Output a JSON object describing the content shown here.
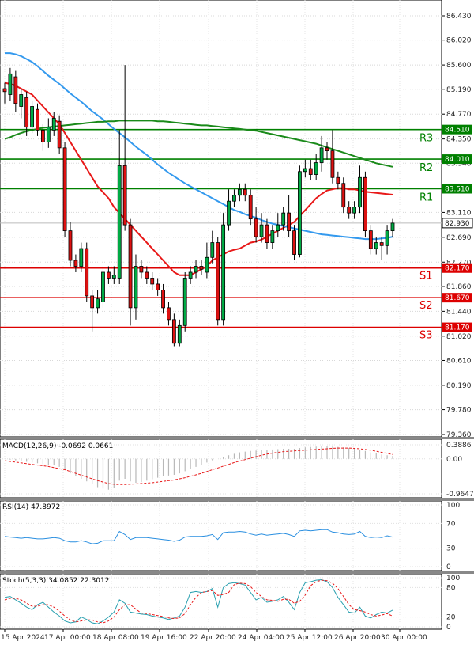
{
  "chart_data": {
    "type": "candlestick",
    "price_axis": {
      "ylim": [
        79.36,
        86.43
      ],
      "ticks": [
        "86.430",
        "86.020",
        "85.600",
        "85.190",
        "84.770",
        "84.350",
        "83.940",
        "83.110",
        "82.690",
        "82.270",
        "81.860",
        "81.440",
        "81.020",
        "80.610",
        "80.190",
        "79.780",
        "79.360"
      ]
    },
    "current_price": {
      "value": 82.93,
      "label": "82.930"
    },
    "levels": [
      {
        "name": "R3",
        "value": 84.51,
        "label": "84.510",
        "color": "#008000"
      },
      {
        "name": "R2",
        "value": 84.01,
        "label": "84.010",
        "color": "#008000"
      },
      {
        "name": "R1",
        "value": 83.51,
        "label": "83.510",
        "color": "#008000"
      },
      {
        "name": "S1",
        "value": 82.17,
        "label": "82.170",
        "color": "#dd0000"
      },
      {
        "name": "S2",
        "value": 81.67,
        "label": "81.670",
        "color": "#dd0000"
      },
      {
        "name": "S3",
        "value": 81.17,
        "label": "81.170",
        "color": "#dd0000"
      }
    ],
    "time_labels": [
      "15 Apr 2024",
      "17 Apr 00:00",
      "18 Apr 08:00",
      "19 Apr 16:00",
      "22 Apr 20:00",
      "24 Apr 04:00",
      "25 Apr 12:00",
      "26 Apr 20:00",
      "30 Apr 00:00"
    ],
    "candles": [
      [
        85.2,
        85.15,
        85.3,
        84.95
      ],
      [
        85.1,
        85.45,
        85.55,
        85.0
      ],
      [
        85.4,
        84.95,
        85.5,
        84.8
      ],
      [
        84.9,
        85.1,
        85.2,
        84.7
      ],
      [
        85.05,
        84.55,
        85.15,
        84.4
      ],
      [
        84.55,
        84.9,
        85.0,
        84.45
      ],
      [
        84.85,
        84.5,
        84.95,
        84.4
      ],
      [
        84.5,
        84.3,
        84.6,
        84.15
      ],
      [
        84.3,
        84.55,
        84.7,
        84.2
      ],
      [
        84.5,
        84.7,
        84.8,
        84.4
      ],
      [
        84.65,
        84.2,
        84.75,
        84.1
      ],
      [
        84.2,
        82.8,
        84.3,
        82.7
      ],
      [
        82.8,
        82.3,
        82.95,
        82.2
      ],
      [
        82.3,
        82.2,
        82.4,
        82.1
      ],
      [
        82.2,
        82.5,
        82.6,
        82.1
      ],
      [
        82.5,
        81.7,
        82.6,
        81.6
      ],
      [
        81.7,
        81.5,
        81.8,
        81.1
      ],
      [
        81.5,
        81.65,
        81.8,
        81.4
      ],
      [
        81.6,
        82.1,
        82.2,
        81.5
      ],
      [
        82.1,
        82.0,
        82.2,
        81.9
      ],
      [
        82.0,
        82.05,
        82.2,
        81.9
      ],
      [
        82.0,
        83.9,
        84.5,
        81.9
      ],
      [
        83.9,
        82.9,
        85.6,
        82.8
      ],
      [
        82.9,
        81.5,
        83.0,
        81.2
      ],
      [
        81.5,
        82.2,
        82.4,
        81.3
      ],
      [
        82.2,
        82.1,
        82.3,
        82.0
      ],
      [
        82.1,
        82.0,
        82.2,
        81.9
      ],
      [
        82.0,
        81.9,
        82.1,
        81.8
      ],
      [
        81.9,
        81.8,
        82.0,
        81.7
      ],
      [
        81.8,
        81.5,
        81.9,
        81.4
      ],
      [
        81.5,
        81.3,
        81.6,
        81.2
      ],
      [
        81.3,
        80.9,
        81.4,
        80.85
      ],
      [
        80.9,
        81.2,
        81.3,
        80.85
      ],
      [
        81.2,
        82.0,
        82.1,
        81.1
      ],
      [
        82.0,
        82.1,
        82.2,
        81.9
      ],
      [
        82.1,
        82.2,
        82.3,
        82.0
      ],
      [
        82.2,
        82.15,
        82.3,
        82.05
      ],
      [
        82.1,
        82.35,
        82.6,
        82.0
      ],
      [
        82.35,
        82.6,
        82.8,
        82.25
      ],
      [
        82.6,
        81.3,
        82.7,
        81.2
      ],
      [
        81.3,
        82.9,
        83.1,
        81.2
      ],
      [
        82.9,
        83.3,
        83.5,
        82.8
      ],
      [
        83.3,
        83.4,
        83.5,
        83.2
      ],
      [
        83.4,
        83.5,
        83.6,
        83.3
      ],
      [
        83.5,
        83.4,
        83.6,
        83.3
      ],
      [
        83.4,
        83.0,
        83.5,
        82.9
      ],
      [
        83.0,
        82.7,
        83.2,
        82.6
      ],
      [
        82.7,
        82.9,
        83.1,
        82.6
      ],
      [
        82.9,
        82.6,
        83.0,
        82.5
      ],
      [
        82.6,
        82.8,
        82.9,
        82.5
      ],
      [
        82.8,
        82.9,
        83.1,
        82.7
      ],
      [
        82.9,
        83.1,
        83.2,
        82.8
      ],
      [
        83.1,
        82.8,
        83.4,
        82.7
      ],
      [
        82.8,
        82.4,
        82.9,
        82.3
      ],
      [
        82.4,
        83.8,
        83.9,
        82.35
      ],
      [
        83.8,
        83.85,
        84.0,
        83.7
      ],
      [
        83.85,
        83.75,
        84.0,
        83.65
      ],
      [
        83.75,
        83.95,
        84.1,
        83.65
      ],
      [
        83.95,
        84.2,
        84.4,
        83.8
      ],
      [
        84.2,
        84.15,
        84.3,
        84.0
      ],
      [
        84.15,
        83.7,
        84.5,
        83.6
      ],
      [
        83.7,
        83.6,
        83.8,
        83.5
      ],
      [
        83.6,
        83.2,
        83.7,
        83.1
      ],
      [
        83.2,
        83.1,
        83.3,
        83.0
      ],
      [
        83.1,
        83.2,
        83.3,
        83.0
      ],
      [
        83.2,
        83.7,
        83.9,
        83.1
      ],
      [
        83.7,
        82.8,
        83.8,
        82.7
      ],
      [
        82.8,
        82.5,
        82.9,
        82.4
      ],
      [
        82.5,
        82.6,
        82.7,
        82.4
      ],
      [
        82.6,
        82.55,
        82.7,
        82.3
      ],
      [
        82.55,
        82.8,
        82.9,
        82.4
      ],
      [
        82.8,
        82.93,
        83.0,
        82.7
      ]
    ],
    "series": [
      {
        "name": "MA-short",
        "color": "#e81818",
        "values": [
          85.3,
          85.28,
          85.25,
          85.2,
          85.15,
          85.1,
          85.0,
          84.9,
          84.8,
          84.7,
          84.6,
          84.45,
          84.3,
          84.15,
          84.0,
          83.85,
          83.7,
          83.55,
          83.45,
          83.35,
          83.2,
          83.1,
          83.0,
          82.9,
          82.8,
          82.7,
          82.6,
          82.5,
          82.4,
          82.3,
          82.2,
          82.1,
          82.05,
          82.05,
          82.05,
          82.1,
          82.15,
          82.2,
          82.3,
          82.35,
          82.4,
          82.45,
          82.48,
          82.5,
          82.55,
          82.6,
          82.62,
          82.65,
          82.7,
          82.75,
          82.8,
          82.85,
          82.9,
          82.95,
          83.05,
          83.15,
          83.25,
          83.35,
          83.42,
          83.48,
          83.5,
          83.52,
          83.52,
          83.5,
          83.5,
          83.48,
          83.46,
          83.45,
          83.44,
          83.43,
          83.42,
          83.41
        ]
      },
      {
        "name": "MA-mid",
        "color": "#3399ee",
        "values": [
          85.8,
          85.8,
          85.78,
          85.75,
          85.7,
          85.65,
          85.58,
          85.5,
          85.42,
          85.35,
          85.28,
          85.2,
          85.12,
          85.05,
          84.98,
          84.9,
          84.82,
          84.75,
          84.68,
          84.6,
          84.52,
          84.45,
          84.38,
          84.3,
          84.22,
          84.15,
          84.08,
          84.0,
          83.92,
          83.85,
          83.78,
          83.72,
          83.66,
          83.6,
          83.55,
          83.5,
          83.45,
          83.4,
          83.35,
          83.3,
          83.25,
          83.2,
          83.15,
          83.12,
          83.08,
          83.05,
          83.02,
          82.98,
          82.95,
          82.92,
          82.9,
          82.88,
          82.86,
          82.84,
          82.82,
          82.8,
          82.78,
          82.76,
          82.74,
          82.73,
          82.72,
          82.71,
          82.7,
          82.69,
          82.68,
          82.67,
          82.66,
          82.66,
          82.66,
          82.67,
          82.68,
          82.7
        ]
      },
      {
        "name": "MA-long",
        "color": "#1a8a1a",
        "values": [
          84.35,
          84.38,
          84.42,
          84.45,
          84.48,
          84.5,
          84.52,
          84.54,
          84.55,
          84.56,
          84.57,
          84.58,
          84.59,
          84.6,
          84.61,
          84.62,
          84.63,
          84.64,
          84.64,
          84.65,
          84.65,
          84.66,
          84.66,
          84.66,
          84.66,
          84.66,
          84.66,
          84.66,
          84.65,
          84.65,
          84.64,
          84.63,
          84.62,
          84.61,
          84.6,
          84.59,
          84.58,
          84.58,
          84.57,
          84.56,
          84.55,
          84.54,
          84.53,
          84.52,
          84.51,
          84.5,
          84.49,
          84.47,
          84.45,
          84.43,
          84.41,
          84.39,
          84.37,
          84.35,
          84.33,
          84.31,
          84.29,
          84.27,
          84.24,
          84.21,
          84.18,
          84.15,
          84.12,
          84.09,
          84.06,
          84.03,
          84.0,
          83.97,
          83.94,
          83.92,
          83.9,
          83.88
        ]
      }
    ],
    "macd": {
      "title": "MACD(12,26,9) -0.0692 0.0661",
      "ticks": [
        "0.3886",
        "0.00",
        "-0.9647"
      ],
      "ylim": [
        -0.9647,
        0.3886
      ],
      "hist": [
        0.0,
        -0.02,
        -0.04,
        -0.06,
        -0.08,
        -0.1,
        -0.12,
        -0.14,
        -0.16,
        -0.18,
        -0.22,
        -0.3,
        -0.4,
        -0.48,
        -0.55,
        -0.62,
        -0.7,
        -0.78,
        -0.82,
        -0.85,
        -0.8,
        -0.6,
        -0.55,
        -0.62,
        -0.66,
        -0.64,
        -0.6,
        -0.56,
        -0.52,
        -0.48,
        -0.46,
        -0.44,
        -0.4,
        -0.34,
        -0.28,
        -0.22,
        -0.16,
        -0.1,
        -0.04,
        0.0,
        0.05,
        0.1,
        0.14,
        0.18,
        0.2,
        0.22,
        0.23,
        0.24,
        0.25,
        0.26,
        0.27,
        0.28,
        0.28,
        0.28,
        0.3,
        0.32,
        0.33,
        0.34,
        0.35,
        0.35,
        0.34,
        0.33,
        0.32,
        0.3,
        0.28,
        0.26,
        0.22,
        0.18,
        0.15,
        0.12,
        0.1,
        0.08
      ],
      "signal": [
        -0.05,
        -0.07,
        -0.09,
        -0.11,
        -0.13,
        -0.15,
        -0.17,
        -0.19,
        -0.21,
        -0.24,
        -0.27,
        -0.3,
        -0.35,
        -0.4,
        -0.45,
        -0.5,
        -0.55,
        -0.6,
        -0.64,
        -0.68,
        -0.7,
        -0.71,
        -0.71,
        -0.7,
        -0.69,
        -0.68,
        -0.67,
        -0.66,
        -0.64,
        -0.62,
        -0.6,
        -0.58,
        -0.55,
        -0.52,
        -0.48,
        -0.44,
        -0.4,
        -0.35,
        -0.3,
        -0.25,
        -0.2,
        -0.15,
        -0.1,
        -0.06,
        -0.02,
        0.02,
        0.06,
        0.1,
        0.13,
        0.16,
        0.18,
        0.2,
        0.21,
        0.22,
        0.23,
        0.24,
        0.25,
        0.26,
        0.27,
        0.28,
        0.29,
        0.3,
        0.3,
        0.3,
        0.29,
        0.28,
        0.26,
        0.24,
        0.21,
        0.18,
        0.15,
        0.12
      ]
    },
    "rsi": {
      "title": "RSI(14) 47.8972",
      "ticks": [
        "100",
        "70",
        "30",
        "0"
      ],
      "ylim": [
        0,
        100
      ],
      "values": [
        49,
        48,
        47,
        46,
        47,
        46,
        45,
        45,
        46,
        47,
        46,
        42,
        40,
        40,
        42,
        40,
        37,
        38,
        42,
        42,
        42,
        57,
        52,
        44,
        47,
        47,
        47,
        46,
        45,
        44,
        43,
        41,
        43,
        48,
        49,
        49,
        49,
        50,
        52,
        44,
        55,
        56,
        56,
        57,
        56,
        53,
        51,
        53,
        51,
        52,
        53,
        54,
        52,
        49,
        58,
        59,
        58,
        59,
        60,
        60,
        56,
        55,
        53,
        52,
        53,
        57,
        49,
        47,
        48,
        47,
        50,
        48
      ]
    },
    "stoch": {
      "title": "Stoch(5,3,3) 34.0852 22.3012",
      "ticks": [
        "100",
        "80",
        "20",
        "0"
      ],
      "ylim": [
        0,
        100
      ],
      "k": [
        60,
        62,
        55,
        48,
        40,
        35,
        45,
        50,
        40,
        30,
        22,
        12,
        8,
        10,
        20,
        15,
        8,
        6,
        12,
        20,
        30,
        55,
        48,
        30,
        28,
        26,
        25,
        22,
        20,
        18,
        15,
        18,
        22,
        40,
        70,
        72,
        70,
        72,
        78,
        40,
        80,
        88,
        90,
        88,
        85,
        70,
        55,
        60,
        50,
        52,
        55,
        62,
        50,
        35,
        70,
        90,
        92,
        95,
        96,
        92,
        80,
        60,
        45,
        30,
        28,
        40,
        22,
        18,
        25,
        30,
        28,
        34
      ],
      "d": [
        55,
        58,
        58,
        55,
        48,
        42,
        42,
        45,
        45,
        40,
        32,
        22,
        14,
        10,
        12,
        14,
        14,
        10,
        8,
        12,
        20,
        35,
        45,
        45,
        36,
        28,
        27,
        25,
        23,
        21,
        18,
        17,
        18,
        27,
        45,
        60,
        70,
        72,
        74,
        64,
        66,
        70,
        86,
        89,
        88,
        82,
        70,
        62,
        55,
        54,
        52,
        56,
        56,
        48,
        52,
        65,
        84,
        92,
        95,
        94,
        89,
        78,
        62,
        45,
        35,
        33,
        30,
        25,
        22,
        24,
        27,
        22
      ]
    }
  }
}
